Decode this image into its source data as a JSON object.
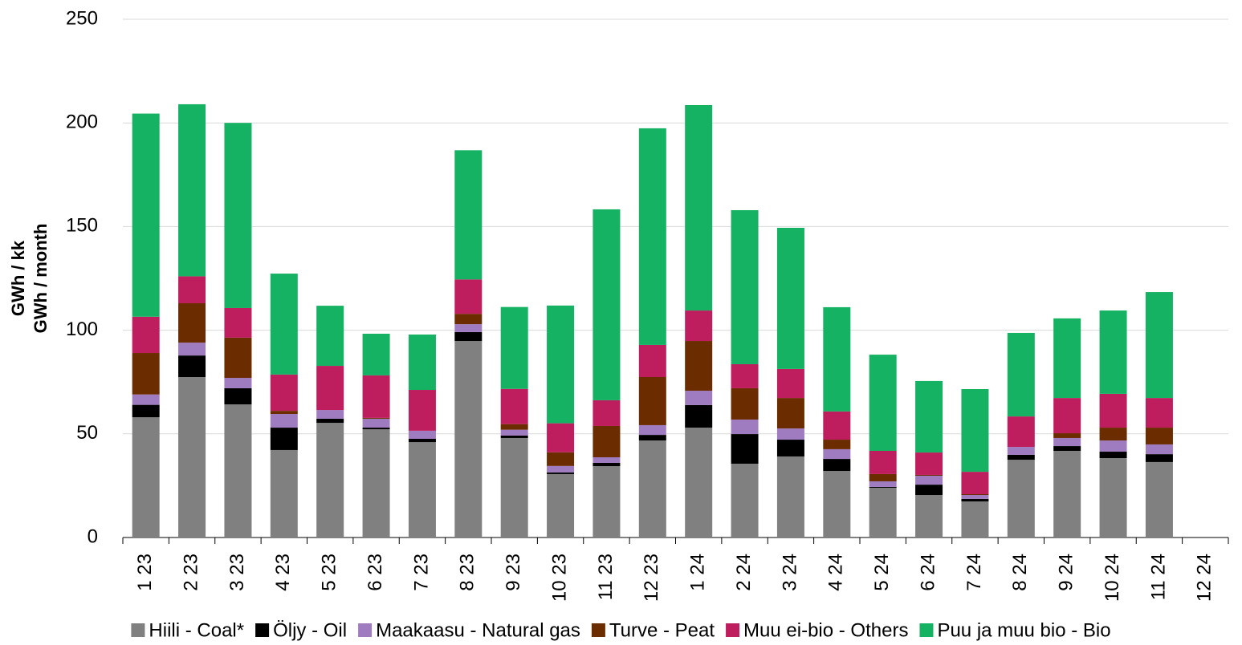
{
  "chart_data": {
    "type": "stacked_bar",
    "y_label": [
      "GWh / kk",
      "GWh / month"
    ],
    "categories": [
      "1 23",
      "2 23",
      "3 23",
      "4 23",
      "5 23",
      "6 23",
      "7 23",
      "8 23",
      "9 23",
      "10 23",
      "11 23",
      "12 23",
      "1 24",
      "2 24",
      "3 24",
      "4 24",
      "5 24",
      "6 24",
      "7 24",
      "8 24",
      "9 24",
      "10 24",
      "11 24",
      "12 24"
    ],
    "series": [
      {
        "name": "Hiili - Coal*",
        "color": "#808080",
        "values": [
          58,
          77.4,
          64.2,
          42.2,
          55.3,
          52.2,
          46,
          94.8,
          48,
          30.6,
          34.4,
          46.8,
          53,
          35.6,
          39.1,
          32.1,
          24,
          20.5,
          17.4,
          37.5,
          41.8,
          38.3,
          36.4,
          null
        ]
      },
      {
        "name": "Öljy - Oil",
        "color": "#000000",
        "values": [
          6,
          10.4,
          7.8,
          10.8,
          2,
          0.8,
          1.6,
          4.3,
          1.2,
          0.8,
          1.6,
          2.7,
          10.9,
          14.3,
          8.1,
          5.8,
          0.4,
          5,
          1.2,
          2.4,
          2.3,
          3.1,
          3.8,
          null
        ]
      },
      {
        "name": "Maakaasu - Natural gas",
        "color": "#9f7bbf",
        "values": [
          5,
          6.2,
          5,
          6.6,
          4.2,
          4.3,
          3.9,
          3.8,
          2.8,
          3.1,
          2.7,
          4.7,
          6.9,
          7,
          5.4,
          4.7,
          2.7,
          4.3,
          1.9,
          3.8,
          3.9,
          5.4,
          4.7,
          null
        ]
      },
      {
        "name": "Turve - Peat",
        "color": "#6b2c00",
        "values": [
          20,
          19,
          19.4,
          1.5,
          0,
          0.4,
          0,
          5,
          2.7,
          6.6,
          15.1,
          23.2,
          24,
          15.1,
          14.7,
          4.6,
          3.5,
          0.4,
          0.4,
          0,
          2.3,
          6.2,
          8.1,
          null
        ]
      },
      {
        "name": "Muu ei-bio - Others",
        "color": "#bf1e5e",
        "values": [
          17.5,
          13,
          14.3,
          17.5,
          21.3,
          20.5,
          19.7,
          16.6,
          17,
          14,
          12.4,
          15.5,
          14.7,
          11.6,
          14,
          13.6,
          11.2,
          10.8,
          10.8,
          14.7,
          17,
          16.3,
          14.3,
          null
        ]
      },
      {
        "name": "Puu ja muu bio - Bio",
        "color": "#16b263",
        "values": [
          98,
          83,
          89.3,
          48.7,
          29,
          20.1,
          26.7,
          62.3,
          39.5,
          56.8,
          92.1,
          104.5,
          99.1,
          74.3,
          68.1,
          50.3,
          46.4,
          34.5,
          39.9,
          40.3,
          38.4,
          40.2,
          51.1,
          null
        ]
      }
    ],
    "ylim": [
      0,
      250
    ],
    "yticks": [
      0,
      50,
      100,
      150,
      200,
      250
    ],
    "grid": true,
    "legend": "bottom"
  }
}
